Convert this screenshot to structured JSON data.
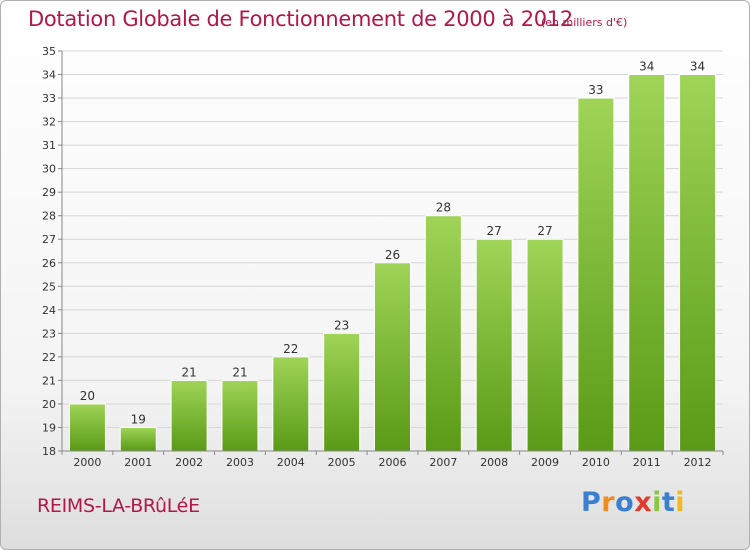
{
  "title": "Dotation Globale de Fonctionnement de 2000 à 2012",
  "subtitle": "(en milliers d'€)",
  "commune": "REIMS-LA-BRûLéE",
  "logo": {
    "text": "Proxiti",
    "letter_colors": [
      "#3a7fd0",
      "#f28c1e",
      "#3a7fd0",
      "#e03a2c",
      "#8cc63e",
      "#3a7fd0",
      "#f2b81e"
    ]
  },
  "colors": {
    "bar_top": "#9fd458",
    "bar_bottom": "#5a9a16",
    "grid": "#d6d6d6",
    "axis": "#888888",
    "accent": "#b3164b"
  },
  "chart_data": {
    "type": "bar",
    "title": "Dotation Globale de Fonctionnement de 2000 à 2012",
    "xlabel": "",
    "ylabel": "",
    "categories": [
      "2000",
      "2001",
      "2002",
      "2003",
      "2004",
      "2005",
      "2006",
      "2007",
      "2008",
      "2009",
      "2010",
      "2011",
      "2012"
    ],
    "values": [
      20,
      19,
      21,
      21,
      22,
      23,
      26,
      28,
      27,
      27,
      33,
      34,
      34
    ],
    "ylim": [
      18,
      35
    ],
    "yticks": [
      18,
      19,
      20,
      21,
      22,
      23,
      24,
      25,
      26,
      27,
      28,
      29,
      30,
      31,
      32,
      33,
      34,
      35
    ],
    "grid": true,
    "legend": "none"
  }
}
